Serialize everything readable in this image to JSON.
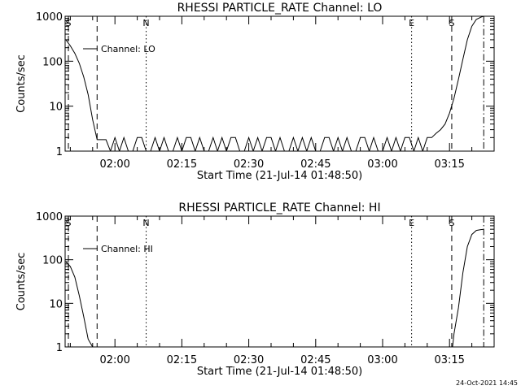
{
  "footer": {
    "timestamp": "24-Oct-2021 14:45"
  },
  "chart_data": [
    {
      "type": "line",
      "title": "RHESSI PARTICLE_RATE Channel: LO",
      "xlabel": "Start Time (21-Jul-14 01:48:50)",
      "ylabel": "Counts/sec",
      "y_scale": "log",
      "xlim": [
        "01:48:50",
        "03:25:00"
      ],
      "ylim": [
        1,
        1000
      ],
      "x_ticks": [
        "02:00",
        "02:15",
        "02:30",
        "02:45",
        "03:00",
        "03:15"
      ],
      "y_ticks": [
        "1",
        "10",
        "100",
        "1000"
      ],
      "legend": {
        "label": "Channel: LO",
        "placement": "top-left"
      },
      "markers": [
        {
          "label": "S",
          "time": "01:48:50",
          "style": "dashed"
        },
        {
          "label": "",
          "time": "01:56:00",
          "style": "dashed"
        },
        {
          "label": "N",
          "time": "02:07:00",
          "style": "dotted"
        },
        {
          "label": "E",
          "time": "03:06:30",
          "style": "dotted"
        },
        {
          "label": "S",
          "time": "03:15:30",
          "style": "dashed"
        },
        {
          "label": "",
          "time": "03:22:40",
          "style": "dashdot"
        }
      ],
      "series": [
        {
          "name": "Channel: LO",
          "x": [
            "01:49:00",
            "01:50:00",
            "01:51:00",
            "01:52:00",
            "01:53:00",
            "01:54:00",
            "01:55:00",
            "01:56:00",
            "01:57:00",
            "01:58:00",
            "01:59:00",
            "02:00:00",
            "02:01:00",
            "02:02:00",
            "02:03:00",
            "02:04:00",
            "02:05:00",
            "02:06:00",
            "02:07:00",
            "02:08:00",
            "02:09:00",
            "02:10:00",
            "02:11:00",
            "02:12:00",
            "02:13:00",
            "02:14:00",
            "02:15:00",
            "02:16:00",
            "02:17:00",
            "02:18:00",
            "02:19:00",
            "02:20:00",
            "02:21:00",
            "02:22:00",
            "02:23:00",
            "02:24:00",
            "02:25:00",
            "02:26:00",
            "02:27:00",
            "02:28:00",
            "02:29:00",
            "02:30:00",
            "02:31:00",
            "02:32:00",
            "02:33:00",
            "02:34:00",
            "02:35:00",
            "02:36:00",
            "02:37:00",
            "02:38:00",
            "02:39:00",
            "02:40:00",
            "02:41:00",
            "02:42:00",
            "02:43:00",
            "02:44:00",
            "02:45:00",
            "02:46:00",
            "02:47:00",
            "02:48:00",
            "02:49:00",
            "02:50:00",
            "02:51:00",
            "02:52:00",
            "02:53:00",
            "02:54:00",
            "02:55:00",
            "02:56:00",
            "02:57:00",
            "02:58:00",
            "02:59:00",
            "03:00:00",
            "03:01:00",
            "03:02:00",
            "03:03:00",
            "03:04:00",
            "03:05:00",
            "03:06:00",
            "03:07:00",
            "03:08:00",
            "03:09:00",
            "03:10:00",
            "03:11:00",
            "03:12:00",
            "03:13:00",
            "03:14:00",
            "03:15:00",
            "03:16:00",
            "03:17:00",
            "03:18:00",
            "03:19:00",
            "03:20:00",
            "03:21:00",
            "03:22:00",
            "03:22:40"
          ],
          "y": [
            300,
            220,
            150,
            90,
            45,
            18,
            5,
            1.8,
            1.8,
            1.8,
            1,
            2,
            1,
            2,
            1,
            1,
            2,
            2,
            1,
            1,
            2,
            1,
            2,
            1,
            1,
            2,
            1,
            2,
            2,
            1,
            2,
            1,
            1,
            2,
            1,
            2,
            1,
            2,
            2,
            1,
            1,
            2,
            1,
            2,
            1,
            2,
            2,
            1,
            2,
            1,
            1,
            2,
            1,
            2,
            1,
            2,
            1,
            1,
            2,
            2,
            1,
            2,
            1,
            2,
            1,
            1,
            2,
            2,
            1,
            2,
            1,
            1,
            2,
            1,
            2,
            1,
            2,
            2,
            1,
            2,
            1,
            2,
            2,
            2.5,
            3,
            4,
            7,
            15,
            40,
            110,
            300,
            600,
            850,
            950,
            1000
          ]
        }
      ]
    },
    {
      "type": "line",
      "title": "RHESSI PARTICLE_RATE Channel: HI",
      "xlabel": "Start Time (21-Jul-14 01:48:50)",
      "ylabel": "Counts/sec",
      "y_scale": "log",
      "xlim": [
        "01:48:50",
        "03:25:00"
      ],
      "ylim": [
        1,
        1000
      ],
      "x_ticks": [
        "02:00",
        "02:15",
        "02:30",
        "02:45",
        "03:00",
        "03:15"
      ],
      "y_ticks": [
        "1",
        "10",
        "100",
        "1000"
      ],
      "legend": {
        "label": "Channel: HI",
        "placement": "top-left"
      },
      "markers": [
        {
          "label": "S",
          "time": "01:48:50",
          "style": "dashed"
        },
        {
          "label": "",
          "time": "01:56:00",
          "style": "dashed"
        },
        {
          "label": "N",
          "time": "02:07:00",
          "style": "dotted"
        },
        {
          "label": "E",
          "time": "03:06:30",
          "style": "dotted"
        },
        {
          "label": "S",
          "time": "03:15:30",
          "style": "dashed"
        },
        {
          "label": "",
          "time": "03:22:40",
          "style": "dashdot"
        }
      ],
      "series": [
        {
          "name": "Channel: HI",
          "x": [
            "01:49:00",
            "01:50:00",
            "01:51:00",
            "01:52:00",
            "01:53:00",
            "01:54:00",
            "01:55:00",
            "03:15:40",
            "03:16:00",
            "03:17:00",
            "03:18:00",
            "03:19:00",
            "03:20:00",
            "03:21:00",
            "03:22:00",
            "03:22:40"
          ],
          "y": [
            90,
            70,
            40,
            15,
            5,
            1.5,
            1,
            1,
            2,
            8,
            50,
            200,
            380,
            470,
            490,
            500
          ]
        }
      ]
    }
  ]
}
